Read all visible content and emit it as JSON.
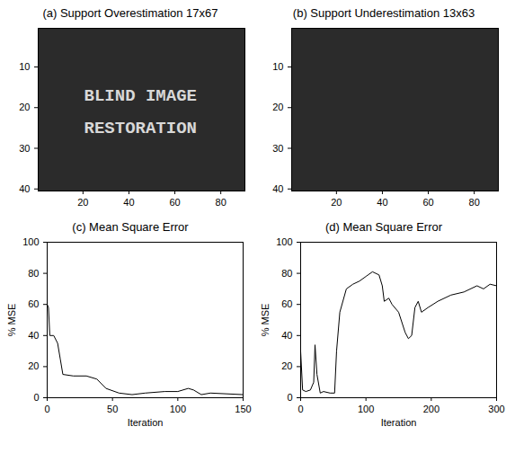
{
  "chart_data": [
    {
      "type": "image",
      "title": "(a) Support Overestimation 17x67",
      "xlim": [
        0.5,
        90.5
      ],
      "ylim": [
        0.5,
        40.5
      ],
      "xticks": [
        20,
        40,
        60,
        80
      ],
      "yticks": [
        10,
        20,
        30,
        40
      ],
      "color": "#d8d8d8",
      "text_rows": [
        {
          "text": "BLIND IMAGE",
          "x": 45,
          "y": 17
        },
        {
          "text": "RESTORATION",
          "x": 45,
          "y": 25
        }
      ]
    },
    {
      "type": "image",
      "title": "(b) Support Underestimation 13x63",
      "xlim": [
        0.5,
        90.5
      ],
      "ylim": [
        0.5,
        40.5
      ],
      "xticks": [
        20,
        40,
        60,
        80
      ],
      "yticks": [
        10,
        20,
        30,
        40
      ],
      "color": "#8a8a8a",
      "text_rows": []
    },
    {
      "type": "line",
      "title": "(c) Mean Square Error",
      "x_label": "Iteration",
      "y_label": "% MSE",
      "xlim": [
        0,
        150
      ],
      "ylim": [
        0,
        100
      ],
      "xticks": [
        0,
        50,
        100,
        150
      ],
      "yticks": [
        0,
        20,
        40,
        60,
        80,
        100
      ],
      "color": "#000000",
      "x": [
        0,
        1,
        2,
        5,
        8,
        10,
        12,
        20,
        30,
        38,
        45,
        55,
        65,
        75,
        90,
        100,
        108,
        112,
        118,
        125,
        150
      ],
      "values": [
        60,
        58,
        40,
        40,
        35,
        25,
        15,
        14,
        14,
        12,
        6,
        3,
        2,
        3,
        4,
        4,
        6,
        5,
        2,
        3,
        2
      ]
    },
    {
      "type": "line",
      "title": "(d) Mean Square Error",
      "x_label": "Iteration",
      "y_label": "% MSE",
      "xlim": [
        0,
        300
      ],
      "ylim": [
        0,
        100
      ],
      "xticks": [
        0,
        100,
        200,
        300
      ],
      "yticks": [
        0,
        20,
        40,
        60,
        80,
        100
      ],
      "color": "#000000",
      "x": [
        0,
        3,
        8,
        15,
        20,
        22,
        25,
        30,
        35,
        45,
        52,
        55,
        60,
        70,
        80,
        90,
        100,
        110,
        120,
        125,
        128,
        135,
        140,
        150,
        160,
        165,
        170,
        175,
        180,
        185,
        195,
        210,
        230,
        250,
        270,
        280,
        290,
        300
      ],
      "values": [
        30,
        5,
        4,
        5,
        10,
        34,
        15,
        3,
        4,
        3,
        3,
        30,
        55,
        70,
        73,
        75,
        78,
        81,
        79,
        72,
        62,
        64,
        60,
        55,
        42,
        38,
        40,
        58,
        62,
        55,
        58,
        62,
        66,
        68,
        72,
        70,
        73,
        72
      ]
    }
  ]
}
